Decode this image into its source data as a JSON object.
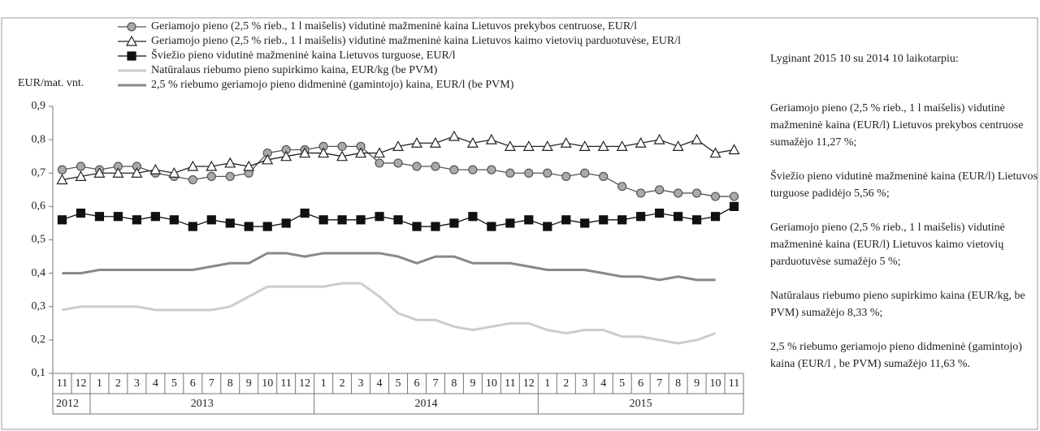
{
  "chart_data": {
    "type": "line",
    "y_label": "EUR/mat. vnt.",
    "categories": [
      "11",
      "12",
      "1",
      "2",
      "3",
      "4",
      "5",
      "6",
      "7",
      "8",
      "9",
      "10",
      "11",
      "12",
      "1",
      "2",
      "3",
      "4",
      "5",
      "6",
      "7",
      "8",
      "9",
      "10",
      "11",
      "12",
      "1",
      "2",
      "3",
      "4",
      "5",
      "6",
      "7",
      "8",
      "9",
      "10",
      "11"
    ],
    "years": [
      "2012",
      "2013",
      "2014",
      "2015"
    ],
    "ylim": [
      0.1,
      0.9
    ],
    "yticks": [
      {
        "value": 0.1,
        "label": "0,1"
      },
      {
        "value": 0.2,
        "label": "0,2"
      },
      {
        "value": 0.3,
        "label": "0,3"
      },
      {
        "value": 0.4,
        "label": "0,4"
      },
      {
        "value": 0.5,
        "label": "0,5"
      },
      {
        "value": 0.6,
        "label": "0,6"
      },
      {
        "value": 0.7,
        "label": "0,7"
      },
      {
        "value": 0.8,
        "label": "0,8"
      },
      {
        "value": 0.9,
        "label": "0,9"
      }
    ],
    "series": [
      {
        "name": "Geriamojo pieno (2,5 % rieb., 1 l maišelis) vidutinė mažmeninė kaina Lietuvos prekybos centruose, EUR/l",
        "color": "#555555",
        "marker": "circle",
        "marker_fill": "#aaaaaa",
        "values": [
          0.71,
          0.72,
          0.71,
          0.72,
          0.72,
          0.7,
          0.69,
          0.68,
          0.69,
          0.69,
          0.7,
          0.76,
          0.77,
          0.77,
          0.78,
          0.78,
          0.78,
          0.73,
          0.73,
          0.72,
          0.72,
          0.71,
          0.71,
          0.71,
          0.7,
          0.7,
          0.7,
          0.69,
          0.7,
          0.69,
          0.66,
          0.64,
          0.65,
          0.64,
          0.64,
          0.63,
          0.63
        ]
      },
      {
        "name": "Geriamojo pieno (2,5 % rieb., 1 l maišelis) vidutinė mažmeninė kaina Lietuvos kaimo vietovių parduotuvėse, EUR/l",
        "color": "#222222",
        "marker": "triangle",
        "marker_fill": "#ffffff",
        "values": [
          0.68,
          0.69,
          0.7,
          0.7,
          0.7,
          0.71,
          0.7,
          0.72,
          0.72,
          0.73,
          0.72,
          0.74,
          0.75,
          0.76,
          0.76,
          0.75,
          0.76,
          0.76,
          0.78,
          0.79,
          0.79,
          0.81,
          0.79,
          0.8,
          0.78,
          0.78,
          0.78,
          0.79,
          0.78,
          0.78,
          0.78,
          0.79,
          0.8,
          0.78,
          0.8,
          0.76,
          0.77
        ]
      },
      {
        "name": "Šviežio pieno vidutinė mažmeninė kaina Lietuvos turguose, EUR/l",
        "color": "#111111",
        "marker": "square",
        "marker_fill": "#111111",
        "values": [
          0.56,
          0.58,
          0.57,
          0.57,
          0.56,
          0.57,
          0.56,
          0.54,
          0.56,
          0.55,
          0.54,
          0.54,
          0.55,
          0.58,
          0.56,
          0.56,
          0.56,
          0.57,
          0.56,
          0.54,
          0.54,
          0.55,
          0.57,
          0.54,
          0.55,
          0.56,
          0.54,
          0.56,
          0.55,
          0.56,
          0.56,
          0.57,
          0.58,
          0.57,
          0.56,
          0.57,
          0.6
        ]
      },
      {
        "name": "Natūralaus riebumo pieno supirkimo kaina, EUR/kg (be PVM)",
        "color": "#cccccc",
        "values": [
          0.29,
          0.3,
          0.3,
          0.3,
          0.3,
          0.29,
          0.29,
          0.29,
          0.29,
          0.3,
          0.33,
          0.36,
          0.36,
          0.36,
          0.36,
          0.37,
          0.37,
          0.33,
          0.28,
          0.26,
          0.26,
          0.24,
          0.23,
          0.24,
          0.25,
          0.25,
          0.23,
          0.22,
          0.23,
          0.23,
          0.21,
          0.21,
          0.2,
          0.19,
          0.2,
          0.22,
          null
        ]
      },
      {
        "name": "2,5 % riebumo geriamojo pieno didmeninė (gamintojo) kaina, EUR/l (be PVM)",
        "color": "#888888",
        "values": [
          0.4,
          0.4,
          0.41,
          0.41,
          0.41,
          0.41,
          0.41,
          0.41,
          0.42,
          0.43,
          0.43,
          0.46,
          0.46,
          0.45,
          0.46,
          0.46,
          0.46,
          0.46,
          0.45,
          0.43,
          0.45,
          0.45,
          0.43,
          0.43,
          0.43,
          0.42,
          0.41,
          0.41,
          0.41,
          0.4,
          0.39,
          0.39,
          0.38,
          0.39,
          0.38,
          0.38,
          null
        ]
      }
    ]
  },
  "side_panel": {
    "heading": "Lyginant 2015 10 su 2014 10  laikotarpiu:",
    "paragraphs": [
      "Geriamojo pieno (2,5 % rieb., 1 l maišelis) vidutinė mažmeninė kaina (EUR/l) Lietuvos prekybos centruose sumažėjo 11,27 %;",
      "Šviežio pieno vidutinė mažmeninė kaina (EUR/l) Lietuvos turguose  padidėjo 5,56 %;",
      "Geriamojo pieno (2,5 % rieb., 1 l maišelis) vidutinė mažmeninė kaina (EUR/l) Lietuvos kaimo vietovių parduotuvėse sumažėjo 5 %;",
      "Natūralaus riebumo pieno supirkimo kaina (EUR/kg, be PVM) sumažėjo  8,33 %;",
      "2,5 % riebumo geriamojo pieno didmeninė (gamintojo) kaina (EUR/l , be PVM) sumažėjo 11,63 %."
    ]
  }
}
